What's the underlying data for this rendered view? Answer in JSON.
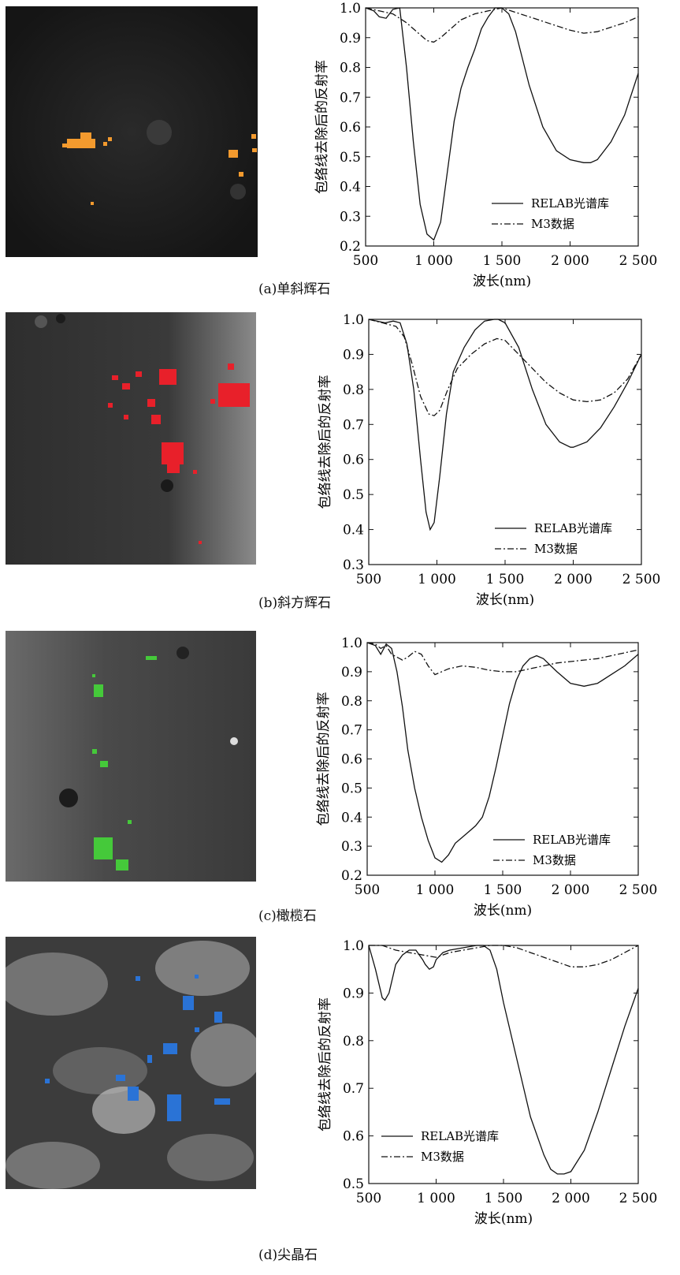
{
  "figure": {
    "ylabel": "包络线去除后的反射率",
    "xlabel": "波长(nm)",
    "x_ticks": [
      "500",
      "1 000",
      "1 500",
      "2 000",
      "2 500"
    ],
    "legend": {
      "relab": "RELAB光谱库",
      "m3": "M3数据"
    },
    "colors": {
      "orange": "#f39a2e",
      "red": "#e8202a",
      "green": "#45c93a",
      "blue": "#2a73d6"
    }
  },
  "chart_data": [
    {
      "type": "line",
      "caption": "(a)单斜辉石",
      "xlim": [
        500,
        2500
      ],
      "ylim": [
        0.2,
        1.0
      ],
      "y_ticks": [
        "0.2",
        "0.3",
        "0.4",
        "0.5",
        "0.6",
        "0.7",
        "0.8",
        "0.9",
        "1.0"
      ],
      "series": [
        {
          "name": "RELAB光谱库",
          "x": [
            500,
            560,
            600,
            650,
            700,
            750,
            800,
            850,
            900,
            950,
            1000,
            1050,
            1100,
            1150,
            1200,
            1250,
            1300,
            1350,
            1400,
            1450,
            1500,
            1550,
            1600,
            1700,
            1800,
            1900,
            2000,
            2100,
            2150,
            2200,
            2300,
            2400,
            2500
          ],
          "y": [
            1.0,
            0.99,
            0.97,
            0.965,
            0.995,
            1.0,
            0.8,
            0.55,
            0.34,
            0.24,
            0.22,
            0.28,
            0.45,
            0.62,
            0.73,
            0.8,
            0.86,
            0.93,
            0.97,
            1.0,
            1.0,
            0.98,
            0.92,
            0.74,
            0.6,
            0.52,
            0.49,
            0.48,
            0.48,
            0.49,
            0.55,
            0.64,
            0.78
          ]
        },
        {
          "name": "M3数据",
          "x": [
            500,
            600,
            700,
            800,
            900,
            950,
            1000,
            1050,
            1100,
            1200,
            1300,
            1400,
            1500,
            1600,
            1700,
            1800,
            1900,
            2000,
            2100,
            2200,
            2300,
            2400,
            2500
          ],
          "y": [
            1.0,
            0.99,
            0.98,
            0.95,
            0.91,
            0.89,
            0.885,
            0.9,
            0.92,
            0.96,
            0.98,
            0.99,
            1.0,
            0.985,
            0.97,
            0.955,
            0.94,
            0.925,
            0.915,
            0.92,
            0.935,
            0.95,
            0.97
          ]
        }
      ]
    },
    {
      "type": "line",
      "caption": "(b)斜方辉石",
      "xlim": [
        500,
        2500
      ],
      "ylim": [
        0.3,
        1.0
      ],
      "y_ticks": [
        "0.3",
        "0.4",
        "0.5",
        "0.6",
        "0.7",
        "0.8",
        "0.9",
        "1.0"
      ],
      "series": [
        {
          "name": "RELAB光谱库",
          "x": [
            500,
            560,
            620,
            680,
            730,
            780,
            830,
            880,
            920,
            950,
            980,
            1020,
            1070,
            1120,
            1200,
            1280,
            1350,
            1420,
            1450,
            1500,
            1600,
            1700,
            1800,
            1900,
            1980,
            2000,
            2100,
            2200,
            2300,
            2400,
            2500
          ],
          "y": [
            1.0,
            0.995,
            0.99,
            0.995,
            0.99,
            0.93,
            0.8,
            0.6,
            0.45,
            0.4,
            0.42,
            0.55,
            0.73,
            0.85,
            0.92,
            0.97,
            0.995,
            1.0,
            1.0,
            0.99,
            0.92,
            0.8,
            0.7,
            0.65,
            0.635,
            0.635,
            0.65,
            0.69,
            0.75,
            0.82,
            0.9
          ]
        },
        {
          "name": "M3数据",
          "x": [
            500,
            600,
            700,
            760,
            820,
            880,
            940,
            980,
            1020,
            1080,
            1150,
            1250,
            1350,
            1440,
            1500,
            1600,
            1700,
            1800,
            1900,
            2000,
            2100,
            2200,
            2300,
            2400,
            2500
          ],
          "y": [
            1.0,
            0.99,
            0.98,
            0.95,
            0.87,
            0.78,
            0.73,
            0.725,
            0.74,
            0.8,
            0.86,
            0.9,
            0.93,
            0.945,
            0.94,
            0.9,
            0.86,
            0.82,
            0.79,
            0.77,
            0.765,
            0.77,
            0.79,
            0.83,
            0.9
          ]
        }
      ]
    },
    {
      "type": "line",
      "caption": "(c)橄榄石",
      "xlim": [
        500,
        2500
      ],
      "ylim": [
        0.2,
        1.0
      ],
      "y_ticks": [
        "0.2",
        "0.3",
        "0.4",
        "0.5",
        "0.6",
        "0.7",
        "0.8",
        "0.9",
        "1.0"
      ],
      "series": [
        {
          "name": "RELAB光谱库",
          "x": [
            500,
            560,
            600,
            640,
            680,
            720,
            760,
            800,
            850,
            900,
            950,
            1000,
            1050,
            1100,
            1150,
            1200,
            1250,
            1300,
            1350,
            1400,
            1450,
            1500,
            1550,
            1600,
            1650,
            1700,
            1750,
            1800,
            1900,
            2000,
            2100,
            2200,
            2300,
            2400,
            2500
          ],
          "y": [
            1.0,
            0.99,
            0.96,
            0.995,
            0.98,
            0.9,
            0.78,
            0.63,
            0.5,
            0.4,
            0.32,
            0.26,
            0.245,
            0.27,
            0.31,
            0.33,
            0.35,
            0.37,
            0.4,
            0.47,
            0.57,
            0.68,
            0.79,
            0.87,
            0.92,
            0.945,
            0.955,
            0.945,
            0.9,
            0.86,
            0.85,
            0.86,
            0.89,
            0.92,
            0.96
          ]
        },
        {
          "name": "M3数据",
          "x": [
            500,
            560,
            600,
            640,
            680,
            720,
            760,
            800,
            850,
            900,
            950,
            1000,
            1050,
            1100,
            1200,
            1300,
            1400,
            1500,
            1600,
            1700,
            1800,
            1900,
            2000,
            2100,
            2200,
            2300,
            2400,
            2500
          ],
          "y": [
            1.0,
            0.995,
            0.98,
            0.99,
            0.96,
            0.95,
            0.94,
            0.95,
            0.97,
            0.96,
            0.92,
            0.89,
            0.9,
            0.91,
            0.92,
            0.915,
            0.905,
            0.9,
            0.9,
            0.91,
            0.92,
            0.93,
            0.935,
            0.94,
            0.945,
            0.955,
            0.965,
            0.975
          ]
        }
      ]
    },
    {
      "type": "line",
      "caption": "(d)尖晶石",
      "xlim": [
        500,
        2500
      ],
      "ylim": [
        0.5,
        1.0
      ],
      "y_ticks": [
        "0.5",
        "0.6",
        "0.7",
        "0.8",
        "0.9",
        "1.0"
      ],
      "series": [
        {
          "name": "RELAB光谱库",
          "x": [
            500,
            550,
            600,
            620,
            650,
            700,
            750,
            800,
            850,
            900,
            920,
            950,
            980,
            1000,
            1050,
            1100,
            1200,
            1300,
            1350,
            1400,
            1450,
            1500,
            1600,
            1700,
            1800,
            1850,
            1900,
            1950,
            2000,
            2100,
            2200,
            2300,
            2400,
            2500
          ],
          "y": [
            1.0,
            0.95,
            0.89,
            0.885,
            0.9,
            0.96,
            0.98,
            0.99,
            0.99,
            0.97,
            0.96,
            0.95,
            0.955,
            0.97,
            0.985,
            0.99,
            0.995,
            1.0,
            1.0,
            0.99,
            0.95,
            0.88,
            0.76,
            0.64,
            0.56,
            0.53,
            0.52,
            0.52,
            0.525,
            0.57,
            0.65,
            0.74,
            0.83,
            0.91
          ]
        },
        {
          "name": "M3数据",
          "x": [
            500,
            600,
            700,
            800,
            900,
            1000,
            1100,
            1200,
            1300,
            1400,
            1500,
            1600,
            1700,
            1800,
            1900,
            2000,
            2100,
            2200,
            2300,
            2400,
            2500
          ],
          "y": [
            1.0,
            1.0,
            0.99,
            0.985,
            0.98,
            0.975,
            0.985,
            0.99,
            0.995,
            1.0,
            1.0,
            0.995,
            0.985,
            0.975,
            0.965,
            0.955,
            0.955,
            0.96,
            0.97,
            0.985,
            1.0
          ]
        }
      ]
    }
  ]
}
